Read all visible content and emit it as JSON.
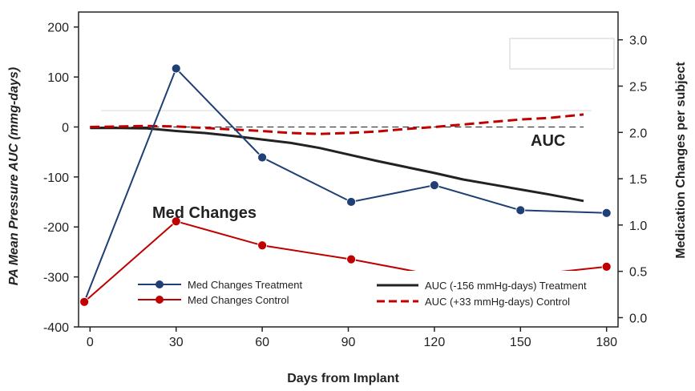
{
  "chart_data": {
    "type": "line",
    "xlabel": "Days from Implant",
    "ylabel_left": "PA Mean Pressure AUC (mmg-days)",
    "ylabel_right": "Medication Changes per subject",
    "x_ticks": [
      0,
      30,
      60,
      90,
      120,
      150,
      180
    ],
    "y_left_ticks": [
      200,
      100,
      0,
      -100,
      -200,
      -300,
      -400
    ],
    "y_right_ticks": [
      3.0,
      2.5,
      2.0,
      1.5,
      1.0,
      0.5,
      0.0
    ],
    "xlim": [
      -4,
      184
    ],
    "ylim_left": [
      -400,
      230
    ],
    "ylim_right": [
      -0.1,
      3.3
    ],
    "annotations": [
      "Med Changes",
      "AUC"
    ],
    "series": [
      {
        "name": "Med Changes Treatment",
        "axis": "right",
        "style": "line-markers",
        "color": "#1f3f75",
        "x": [
          -2,
          30,
          60,
          91,
          120,
          150,
          180
        ],
        "values": [
          0.17,
          2.69,
          1.73,
          1.25,
          1.43,
          1.16,
          1.13
        ]
      },
      {
        "name": "Med Changes Control",
        "axis": "right",
        "style": "line-markers",
        "color": "#c00000",
        "x": [
          -2,
          30,
          60,
          91,
          120,
          150,
          180
        ],
        "values": [
          0.17,
          1.04,
          0.78,
          0.63,
          0.46,
          0.45,
          0.55
        ]
      },
      {
        "name": "AUC (-156 mmHg-days) Treatment",
        "axis": "left",
        "style": "solid",
        "color": "#222222",
        "x": [
          0,
          10,
          20,
          30,
          40,
          50,
          60,
          70,
          80,
          90,
          100,
          110,
          120,
          130,
          140,
          150,
          160,
          172
        ],
        "values": [
          -2,
          -2,
          -3,
          -8,
          -12,
          -18,
          -25,
          -32,
          -42,
          -55,
          -68,
          -80,
          -92,
          -105,
          -115,
          -125,
          -135,
          -148
        ]
      },
      {
        "name": "AUC (+33 mmHg-days) Control",
        "axis": "left",
        "style": "dashed",
        "color": "#c00000",
        "x": [
          0,
          10,
          20,
          30,
          40,
          50,
          60,
          70,
          80,
          90,
          100,
          110,
          120,
          130,
          140,
          150,
          160,
          172
        ],
        "values": [
          0,
          1,
          2,
          1,
          -2,
          -5,
          -8,
          -12,
          -14,
          -12,
          -9,
          -4,
          0,
          5,
          10,
          15,
          18,
          25
        ]
      }
    ],
    "zero_reference_line": 0
  },
  "legend": {
    "left": [
      "Med Changes Treatment",
      "Med Changes Control"
    ],
    "right": [
      "AUC (-156 mmHg-days) Treatment",
      "AUC (+33 mmHg-days) Control"
    ]
  }
}
